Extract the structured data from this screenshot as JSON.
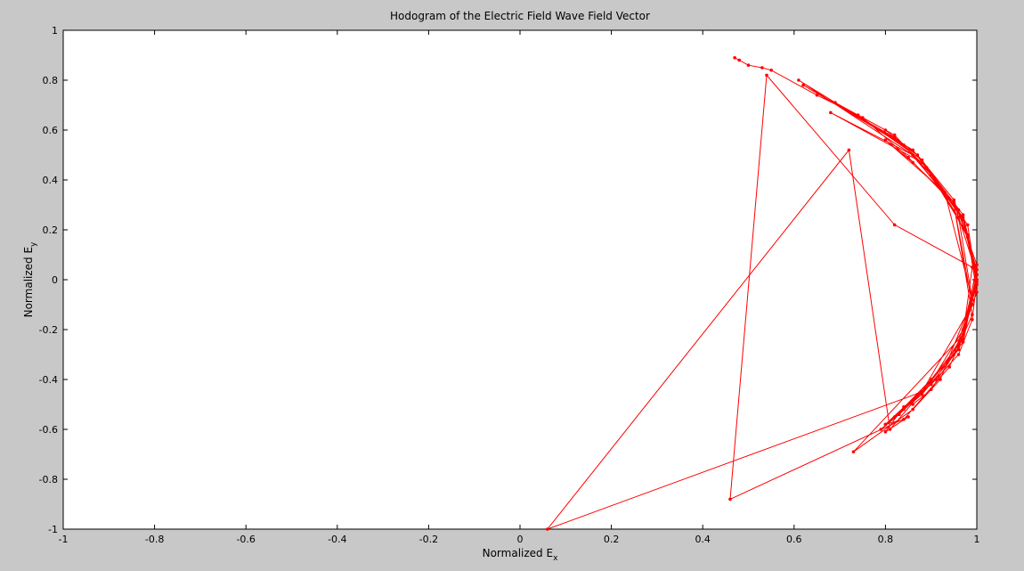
{
  "window": {
    "background": "#c8c8c8"
  },
  "chart_data": {
    "type": "scatter",
    "title": "Hodogram of the Electric Field Wave Field Vector",
    "xlabel": {
      "main": "Normalized E",
      "sub": "x"
    },
    "ylabel": {
      "main": "Normalized E",
      "sub": "y"
    },
    "xlim": [
      -1,
      1
    ],
    "ylim": [
      -1,
      1
    ],
    "xticks": [
      -1,
      -0.8,
      -0.6,
      -0.4,
      -0.2,
      0,
      0.2,
      0.4,
      0.6,
      0.8,
      1
    ],
    "yticks": [
      -1,
      -0.8,
      -0.6,
      -0.4,
      -0.2,
      0,
      0.2,
      0.4,
      0.6,
      0.8,
      1
    ],
    "xtick_labels": [
      "-1",
      "-0.8",
      "-0.6",
      "-0.4",
      "-0.2",
      "0",
      "0.2",
      "0.4",
      "0.6",
      "0.8",
      "1"
    ],
    "ytick_labels": [
      "-1",
      "-0.8",
      "-0.6",
      "-0.4",
      "-0.2",
      "0",
      "0.2",
      "0.4",
      "0.6",
      "0.8",
      "1"
    ],
    "grid": false,
    "line_color": "#ff0000",
    "series": [
      {
        "marker": "dot",
        "x": [
          0.47,
          0.48,
          0.5,
          0.53,
          0.55,
          0.65,
          0.75,
          0.85,
          0.93,
          0.98,
          1.0,
          0.99,
          0.96,
          0.9,
          0.84,
          0.8,
          0.85,
          0.46,
          0.54,
          0.82,
          0.99,
          0.97,
          0.73,
          0.86,
          0.92,
          0.99,
          0.93,
          0.8,
          0.86,
          0.95,
          1.0,
          0.97,
          0.88,
          0.81,
          0.72,
          0.06,
          0.88,
          0.99,
          0.95,
          0.86,
          0.68,
          0.88,
          0.97,
          1.0,
          0.96,
          0.88,
          0.8,
          0.84,
          0.94,
          0.99,
          0.95,
          0.86,
          0.61,
          0.86,
          0.97,
          1.0,
          0.97,
          0.91,
          0.83,
          0.79,
          0.88,
          0.96,
          1.0,
          0.98,
          0.9,
          0.82,
          0.69,
          0.87,
          0.97,
          1.0,
          0.97,
          0.91,
          0.84,
          0.8,
          0.87,
          0.95,
          0.99,
          0.96,
          0.89,
          0.82,
          0.62,
          0.84,
          0.96,
          1.0,
          0.97,
          0.9,
          0.83,
          0.82,
          0.9,
          0.97,
          1.0,
          0.95,
          0.87,
          0.8,
          0.74,
          0.88,
          0.98,
          1.0,
          0.96,
          0.9,
          0.86
        ],
        "y": [
          0.89,
          0.88,
          0.86,
          0.85,
          0.84,
          0.74,
          0.65,
          0.49,
          0.34,
          0.17,
          0.0,
          -0.16,
          -0.3,
          -0.42,
          -0.51,
          -0.61,
          -0.55,
          -0.88,
          0.82,
          0.22,
          0.05,
          -0.22,
          -0.69,
          -0.52,
          -0.4,
          -0.08,
          0.35,
          0.56,
          0.47,
          0.31,
          0.02,
          -0.25,
          -0.45,
          -0.6,
          0.52,
          -1.0,
          -0.45,
          -0.1,
          0.3,
          0.5,
          0.67,
          0.47,
          0.24,
          -0.01,
          -0.28,
          -0.46,
          -0.58,
          -0.56,
          -0.35,
          -0.14,
          0.3,
          0.52,
          0.8,
          0.5,
          0.25,
          0.0,
          -0.22,
          -0.4,
          -0.54,
          -0.6,
          -0.45,
          -0.26,
          -0.05,
          0.18,
          0.42,
          0.58,
          0.71,
          0.5,
          0.26,
          0.02,
          -0.22,
          -0.4,
          -0.52,
          -0.58,
          -0.46,
          -0.3,
          -0.08,
          0.25,
          0.45,
          0.57,
          0.78,
          0.54,
          0.28,
          0.04,
          -0.2,
          -0.41,
          -0.54,
          -0.55,
          -0.4,
          -0.24,
          0.06,
          0.32,
          0.5,
          0.6,
          0.66,
          0.48,
          0.22,
          -0.02,
          -0.27,
          -0.44,
          -0.5
        ]
      }
    ]
  }
}
